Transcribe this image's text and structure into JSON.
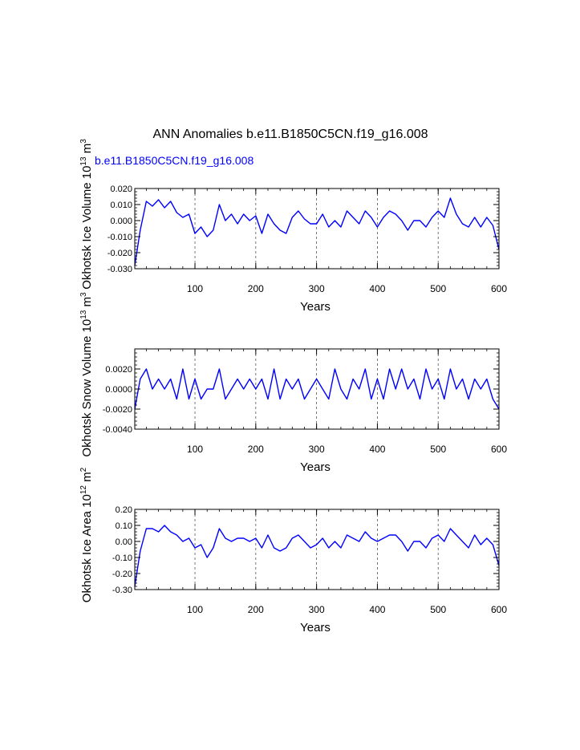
{
  "title": "ANN Anomalies b.e11.B1850C5CN.f19_g16.008",
  "legend_label": "b.e11.B1850C5CN.f19_g16.008",
  "series_color": "#0000ff",
  "chart_data": [
    {
      "type": "line",
      "name": "ice_volume",
      "ylabel_main": "Okhotsk Ice Volume 10",
      "ylabel_exp": "13",
      "ylabel_unit": " m",
      "ylabel_unit_exp": "3",
      "xlabel": "Years",
      "xlim": [
        1,
        600
      ],
      "ylim": [
        -0.03,
        0.02
      ],
      "xticks": [
        100,
        200,
        300,
        400,
        500,
        600
      ],
      "xtick_labels": [
        "100",
        "200",
        "300",
        "400",
        "500",
        "600"
      ],
      "yticks": [
        -0.03,
        -0.02,
        -0.01,
        0.0,
        0.01,
        0.02
      ],
      "ytick_labels": [
        "-0.030",
        "-0.020",
        "-0.010",
        "0.000",
        "0.010",
        "0.020"
      ],
      "grid_x": true,
      "series": [
        {
          "name": "b.e11.B1850C5CN.f19_g16.008",
          "x": [
            1,
            10,
            20,
            30,
            40,
            50,
            60,
            70,
            80,
            90,
            100,
            110,
            120,
            130,
            140,
            150,
            160,
            170,
            180,
            190,
            200,
            210,
            220,
            230,
            240,
            250,
            260,
            270,
            280,
            290,
            300,
            310,
            320,
            330,
            340,
            350,
            360,
            370,
            380,
            390,
            400,
            410,
            420,
            430,
            440,
            450,
            460,
            470,
            480,
            490,
            500,
            510,
            520,
            530,
            540,
            550,
            560,
            570,
            580,
            590,
            600
          ],
          "values": [
            -0.028,
            -0.006,
            0.012,
            0.009,
            0.013,
            0.008,
            0.012,
            0.005,
            0.002,
            0.004,
            -0.008,
            -0.004,
            -0.01,
            -0.006,
            0.01,
            0.0,
            0.004,
            -0.002,
            0.004,
            0.0,
            0.003,
            -0.008,
            0.004,
            -0.002,
            -0.006,
            -0.008,
            0.002,
            0.006,
            0.001,
            -0.002,
            -0.002,
            0.004,
            -0.004,
            0.0,
            -0.004,
            0.006,
            0.002,
            -0.002,
            0.006,
            0.002,
            -0.004,
            0.002,
            0.006,
            0.004,
            0.0,
            -0.006,
            0.0,
            0.0,
            -0.004,
            0.002,
            0.006,
            0.002,
            0.014,
            0.004,
            -0.002,
            -0.004,
            0.002,
            -0.004,
            0.002,
            -0.003,
            -0.018
          ]
        }
      ]
    },
    {
      "type": "line",
      "name": "snow_volume",
      "ylabel_main": "Okhotsk Snow Volume 10",
      "ylabel_exp": "13",
      "ylabel_unit": " m",
      "ylabel_unit_exp": "3",
      "xlabel": "Years",
      "xlim": [
        1,
        600
      ],
      "ylim": [
        -0.004,
        0.004
      ],
      "xticks": [
        100,
        200,
        300,
        400,
        500,
        600
      ],
      "xtick_labels": [
        "100",
        "200",
        "300",
        "400",
        "500",
        "600"
      ],
      "yticks": [
        -0.004,
        -0.002,
        0.0,
        0.002
      ],
      "ytick_labels": [
        "-0.0040",
        "-0.0020",
        "0.0000",
        "0.0020"
      ],
      "grid_x": true,
      "series": [
        {
          "name": "b.e11.B1850C5CN.f19_g16.008",
          "x": [
            1,
            10,
            20,
            30,
            40,
            50,
            60,
            70,
            80,
            90,
            100,
            110,
            120,
            130,
            140,
            150,
            160,
            170,
            180,
            190,
            200,
            210,
            220,
            230,
            240,
            250,
            260,
            270,
            280,
            290,
            300,
            310,
            320,
            330,
            340,
            350,
            360,
            370,
            380,
            390,
            400,
            410,
            420,
            430,
            440,
            450,
            460,
            470,
            480,
            490,
            500,
            510,
            520,
            530,
            540,
            550,
            560,
            570,
            580,
            590,
            600
          ],
          "values": [
            -0.002,
            0.001,
            0.002,
            0.0,
            0.001,
            0.0,
            0.001,
            -0.001,
            0.002,
            -0.001,
            0.001,
            -0.001,
            0.0,
            0.0,
            0.002,
            -0.001,
            0.0,
            0.001,
            0.0,
            0.001,
            0.0,
            0.001,
            -0.001,
            0.002,
            -0.001,
            0.001,
            0.0,
            0.001,
            -0.001,
            0.0,
            0.001,
            0.0,
            -0.001,
            0.002,
            0.0,
            -0.001,
            0.001,
            0.0,
            0.002,
            -0.001,
            0.001,
            -0.001,
            0.002,
            0.0,
            0.002,
            0.0,
            0.001,
            -0.001,
            0.002,
            0.0,
            0.001,
            -0.001,
            0.002,
            0.0,
            0.001,
            -0.001,
            0.001,
            0.0,
            0.001,
            -0.001,
            -0.002
          ]
        }
      ]
    },
    {
      "type": "line",
      "name": "ice_area",
      "ylabel_main": "Okhotsk Ice Area 10",
      "ylabel_exp": "12",
      "ylabel_unit": " m",
      "ylabel_unit_exp": "2",
      "xlabel": "Years",
      "xlim": [
        1,
        600
      ],
      "ylim": [
        -0.3,
        0.2
      ],
      "xticks": [
        100,
        200,
        300,
        400,
        500,
        600
      ],
      "xtick_labels": [
        "100",
        "200",
        "300",
        "400",
        "500",
        "600"
      ],
      "yticks": [
        -0.3,
        -0.2,
        -0.1,
        0.0,
        0.1,
        0.2
      ],
      "ytick_labels": [
        "-0.30",
        "-0.20",
        "-0.10",
        "0.00",
        "0.10",
        "0.20"
      ],
      "grid_x": true,
      "series": [
        {
          "name": "b.e11.B1850C5CN.f19_g16.008",
          "x": [
            1,
            10,
            20,
            30,
            40,
            50,
            60,
            70,
            80,
            90,
            100,
            110,
            120,
            130,
            140,
            150,
            160,
            170,
            180,
            190,
            200,
            210,
            220,
            230,
            240,
            250,
            260,
            270,
            280,
            290,
            300,
            310,
            320,
            330,
            340,
            350,
            360,
            370,
            380,
            390,
            400,
            410,
            420,
            430,
            440,
            450,
            460,
            470,
            480,
            490,
            500,
            510,
            520,
            530,
            540,
            550,
            560,
            570,
            580,
            590,
            600
          ],
          "values": [
            -0.28,
            -0.06,
            0.08,
            0.08,
            0.06,
            0.1,
            0.06,
            0.04,
            0.0,
            0.02,
            -0.04,
            -0.02,
            -0.1,
            -0.04,
            0.08,
            0.02,
            0.0,
            0.02,
            0.02,
            0.0,
            0.02,
            -0.04,
            0.04,
            -0.04,
            -0.06,
            -0.04,
            0.02,
            0.04,
            0.0,
            -0.04,
            -0.02,
            0.02,
            -0.04,
            0.0,
            -0.04,
            0.04,
            0.02,
            0.0,
            0.06,
            0.02,
            0.0,
            0.02,
            0.04,
            0.04,
            0.0,
            -0.06,
            0.0,
            0.0,
            -0.04,
            0.02,
            0.04,
            0.0,
            0.08,
            0.04,
            0.0,
            -0.04,
            0.04,
            -0.02,
            0.02,
            -0.02,
            -0.15
          ]
        }
      ]
    }
  ]
}
